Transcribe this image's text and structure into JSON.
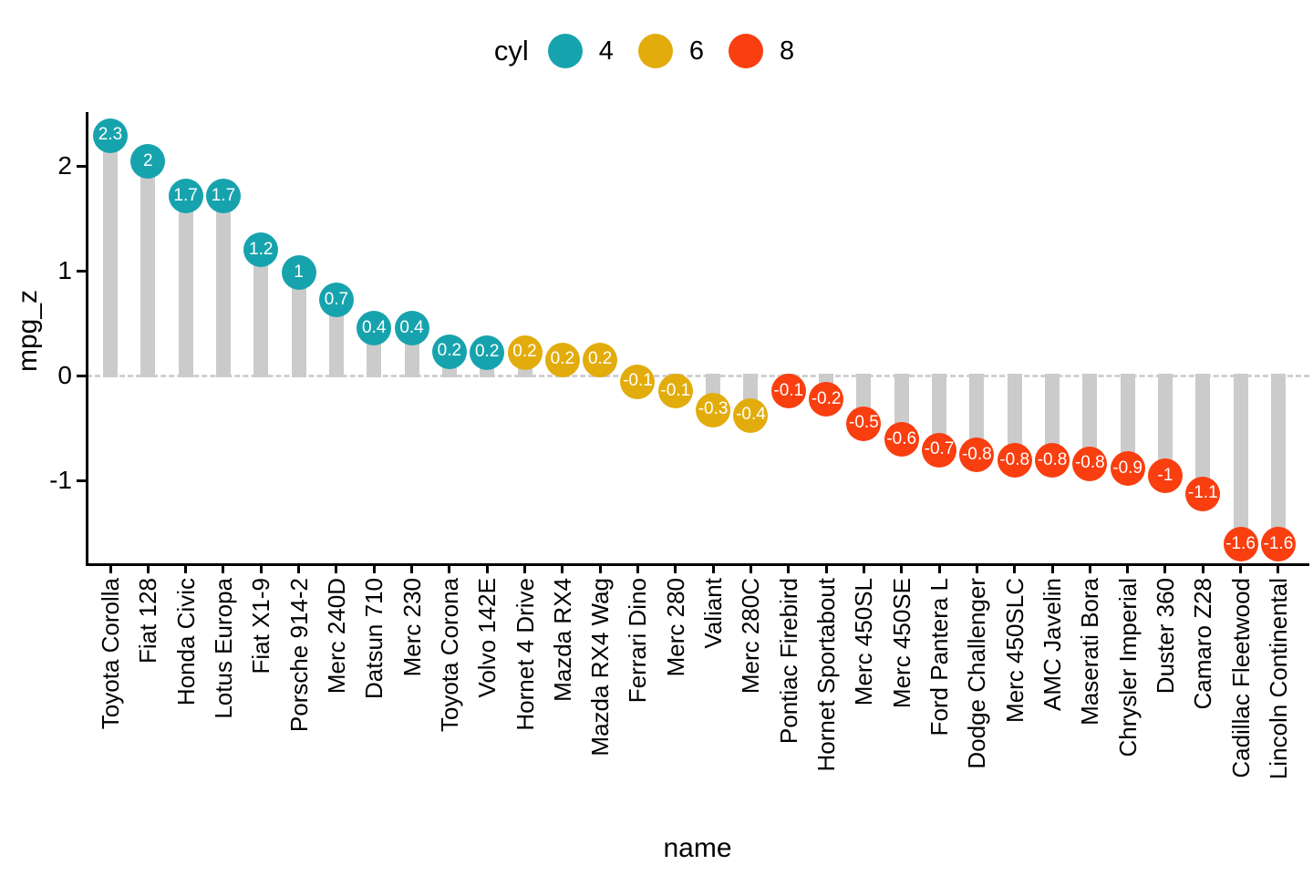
{
  "legend": {
    "title": "cyl",
    "entries": [
      {
        "label": "4",
        "color": "#17a3ad"
      },
      {
        "label": "6",
        "color": "#e2ac0c"
      },
      {
        "label": "8",
        "color": "#f93e10"
      }
    ]
  },
  "colors": {
    "stem": "#cbcbcb",
    "zero_line": "#d0d0d0",
    "axis": "#000000",
    "point_text": "#ffffff",
    "background": "#ffffff"
  },
  "chart_data": {
    "type": "lollipop",
    "title": "",
    "xlabel": "name",
    "ylabel": "mpg_z",
    "ylim": [
      -1.8,
      2.55
    ],
    "yticks": [
      2,
      1,
      0,
      -1
    ],
    "baseline": 0,
    "grid": false,
    "legend_position": "top-center",
    "series_colors": {
      "4": "#17a3ad",
      "6": "#e2ac0c",
      "8": "#f93e10"
    },
    "points": [
      {
        "name": "Toyota Corolla",
        "cyl": "4",
        "z": 2.29,
        "label": "2.3"
      },
      {
        "name": "Fiat 128",
        "cyl": "4",
        "z": 2.04,
        "label": "2"
      },
      {
        "name": "Honda Civic",
        "cyl": "4",
        "z": 1.71,
        "label": "1.7"
      },
      {
        "name": "Lotus Europa",
        "cyl": "4",
        "z": 1.71,
        "label": "1.7"
      },
      {
        "name": "Fiat X1-9",
        "cyl": "4",
        "z": 1.2,
        "label": "1.2"
      },
      {
        "name": "Porsche 914-2",
        "cyl": "4",
        "z": 0.98,
        "label": "1"
      },
      {
        "name": "Merc 240D",
        "cyl": "4",
        "z": 0.72,
        "label": "0.7"
      },
      {
        "name": "Datsun 710",
        "cyl": "4",
        "z": 0.45,
        "label": "0.4"
      },
      {
        "name": "Merc 230",
        "cyl": "4",
        "z": 0.45,
        "label": "0.4"
      },
      {
        "name": "Toyota Corona",
        "cyl": "4",
        "z": 0.23,
        "label": "0.2"
      },
      {
        "name": "Volvo 142E",
        "cyl": "4",
        "z": 0.22,
        "label": "0.2"
      },
      {
        "name": "Hornet 4 Drive",
        "cyl": "6",
        "z": 0.22,
        "label": "0.2"
      },
      {
        "name": "Mazda RX4",
        "cyl": "6",
        "z": 0.15,
        "label": "0.2"
      },
      {
        "name": "Mazda RX4 Wag",
        "cyl": "6",
        "z": 0.15,
        "label": "0.2"
      },
      {
        "name": "Ferrari Dino",
        "cyl": "6",
        "z": -0.06,
        "label": "-0.1"
      },
      {
        "name": "Merc 280",
        "cyl": "6",
        "z": -0.15,
        "label": "-0.1"
      },
      {
        "name": "Valiant",
        "cyl": "6",
        "z": -0.33,
        "label": "-0.3"
      },
      {
        "name": "Merc 280C",
        "cyl": "6",
        "z": -0.38,
        "label": "-0.4"
      },
      {
        "name": "Pontiac Firebird",
        "cyl": "8",
        "z": -0.15,
        "label": "-0.1"
      },
      {
        "name": "Hornet Sportabout",
        "cyl": "8",
        "z": -0.23,
        "label": "-0.2"
      },
      {
        "name": "Merc 450SL",
        "cyl": "8",
        "z": -0.46,
        "label": "-0.5"
      },
      {
        "name": "Merc 450SE",
        "cyl": "8",
        "z": -0.61,
        "label": "-0.6"
      },
      {
        "name": "Ford Pantera L",
        "cyl": "8",
        "z": -0.71,
        "label": "-0.7"
      },
      {
        "name": "Dodge Challenger",
        "cyl": "8",
        "z": -0.76,
        "label": "-0.8"
      },
      {
        "name": "Merc 450SLC",
        "cyl": "8",
        "z": -0.81,
        "label": "-0.8"
      },
      {
        "name": "AMC Javelin",
        "cyl": "8",
        "z": -0.81,
        "label": "-0.8"
      },
      {
        "name": "Maserati Bora",
        "cyl": "8",
        "z": -0.84,
        "label": "-0.8"
      },
      {
        "name": "Chrysler Imperial",
        "cyl": "8",
        "z": -0.89,
        "label": "-0.9"
      },
      {
        "name": "Duster 360",
        "cyl": "8",
        "z": -0.96,
        "label": "-1"
      },
      {
        "name": "Camaro Z28",
        "cyl": "8",
        "z": -1.13,
        "label": "-1.1"
      },
      {
        "name": "Cadillac Fleetwood",
        "cyl": "8",
        "z": -1.61,
        "label": "-1.6"
      },
      {
        "name": "Lincoln Continental",
        "cyl": "8",
        "z": -1.61,
        "label": "-1.6"
      }
    ]
  }
}
